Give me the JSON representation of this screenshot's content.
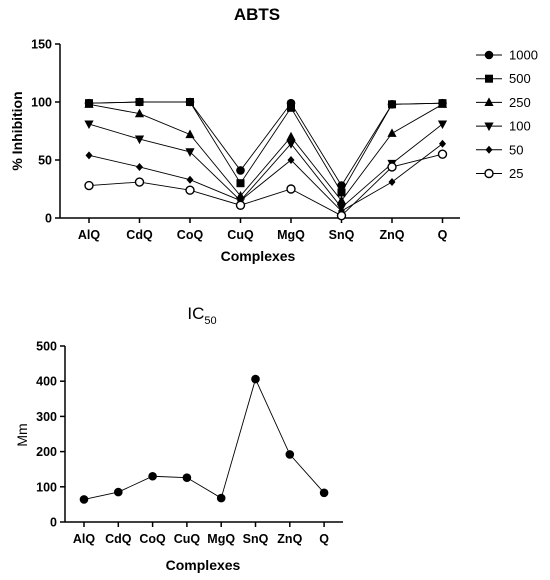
{
  "chart_data": [
    {
      "type": "line",
      "title": "ABTS",
      "xlabel": "Complexes",
      "ylabel": "% Inhibition",
      "ylim": [
        0,
        150
      ],
      "yticks": [
        0,
        50,
        100,
        150
      ],
      "categories": [
        "AlQ",
        "CdQ",
        "CoQ",
        "CuQ",
        "MgQ",
        "SnQ",
        "ZnQ",
        "Q"
      ],
      "legend_position": "right",
      "grid": false,
      "series": [
        {
          "name": "1000",
          "marker": "circle-filled",
          "values": [
            99,
            100,
            100,
            41,
            99,
            28,
            98,
            99
          ]
        },
        {
          "name": "500",
          "marker": "square",
          "values": [
            99,
            100,
            100,
            30,
            95,
            22,
            98,
            99
          ]
        },
        {
          "name": "250",
          "marker": "triangle-up",
          "values": [
            98,
            90,
            72,
            19,
            70,
            15,
            73,
            98
          ]
        },
        {
          "name": "100",
          "marker": "triangle-down",
          "values": [
            81,
            68,
            57,
            15,
            64,
            9,
            47,
            81
          ]
        },
        {
          "name": "50",
          "marker": "diamond",
          "values": [
            54,
            44,
            33,
            15,
            50,
            6,
            31,
            64
          ]
        },
        {
          "name": "25",
          "marker": "circle-open",
          "values": [
            28,
            31,
            24,
            11,
            25,
            2,
            44,
            55
          ]
        }
      ]
    },
    {
      "type": "line",
      "title": "IC",
      "title_subscript": "50",
      "xlabel": "Complexes",
      "ylabel": "Mm",
      "ylim": [
        0,
        500
      ],
      "yticks": [
        0,
        100,
        200,
        300,
        400,
        500
      ],
      "categories": [
        "AlQ",
        "CdQ",
        "CoQ",
        "CuQ",
        "MgQ",
        "SnQ",
        "ZnQ",
        "Q"
      ],
      "grid": false,
      "series": [
        {
          "values": [
            64,
            85,
            130,
            126,
            68,
            406,
            192,
            83
          ]
        }
      ]
    }
  ]
}
